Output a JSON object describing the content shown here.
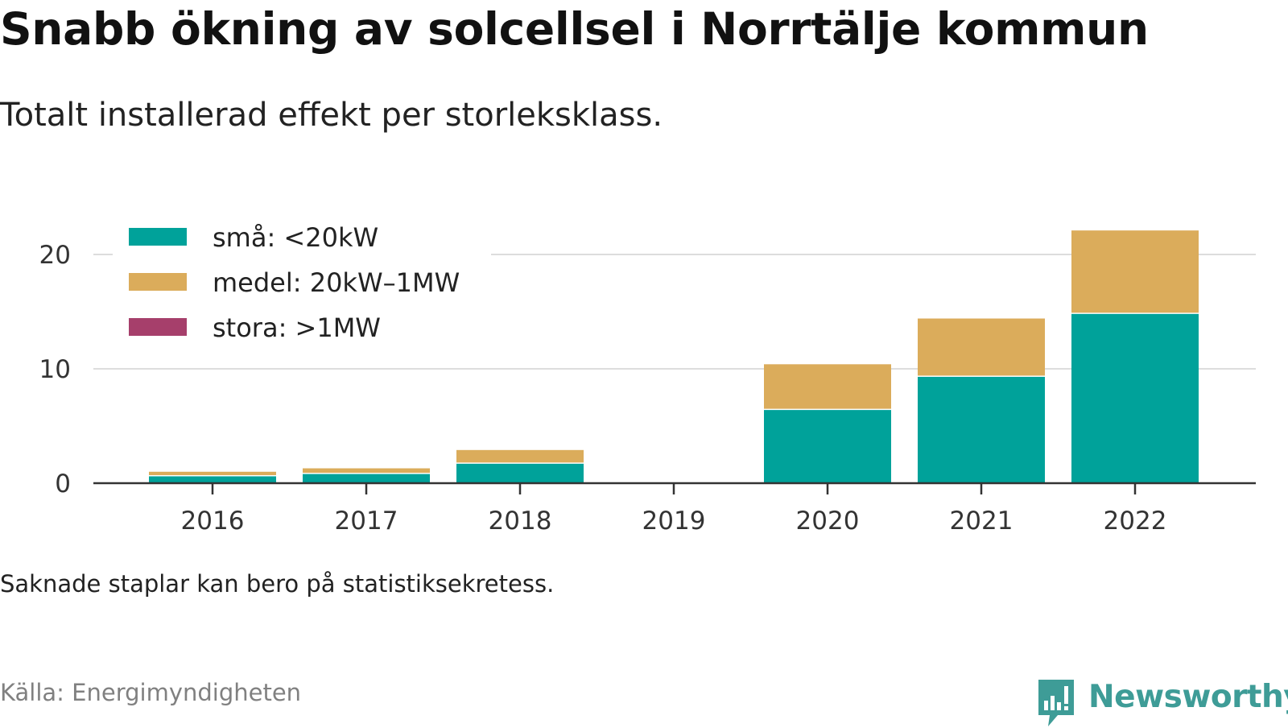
{
  "title": "Snabb ökning av solcellsel i Norrtälje kommun",
  "subtitle": "Totalt installerad effekt per storleksklass.",
  "footnote": "Saknade staplar kan bero på statistiksekretess.",
  "source": "Källa: Energimyndigheten",
  "brand": "Newsworthy",
  "colors": {
    "sma": "#00a29a",
    "medel": "#dbac5b",
    "stora": "#a63f6b",
    "grid": "#dddddd",
    "axis": "#333333",
    "brand": "#3e9c97"
  },
  "chart_data": {
    "type": "bar",
    "stacked": true,
    "title": "Snabb ökning av solcellsel i Norrtälje kommun",
    "subtitle": "Totalt installerad effekt per storleksklass.",
    "xlabel": "",
    "ylabel": "",
    "categories": [
      "2016",
      "2017",
      "2018",
      "2019",
      "2020",
      "2021",
      "2022"
    ],
    "series": [
      {
        "name": "små: <20kW",
        "color": "#00a29a",
        "values": [
          0.6,
          0.8,
          1.7,
          null,
          6.4,
          9.3,
          14.8
        ]
      },
      {
        "name": "medel: 20kW–1MW",
        "color": "#dbac5b",
        "values": [
          0.4,
          0.5,
          1.2,
          null,
          4.0,
          5.1,
          7.3
        ]
      },
      {
        "name": "stora: >1MW",
        "color": "#a63f6b",
        "values": [
          null,
          null,
          null,
          null,
          null,
          null,
          null
        ]
      }
    ],
    "ylim": [
      0,
      22
    ],
    "yticks": [
      0,
      10,
      20
    ],
    "grid": true,
    "legend": "top-left"
  }
}
